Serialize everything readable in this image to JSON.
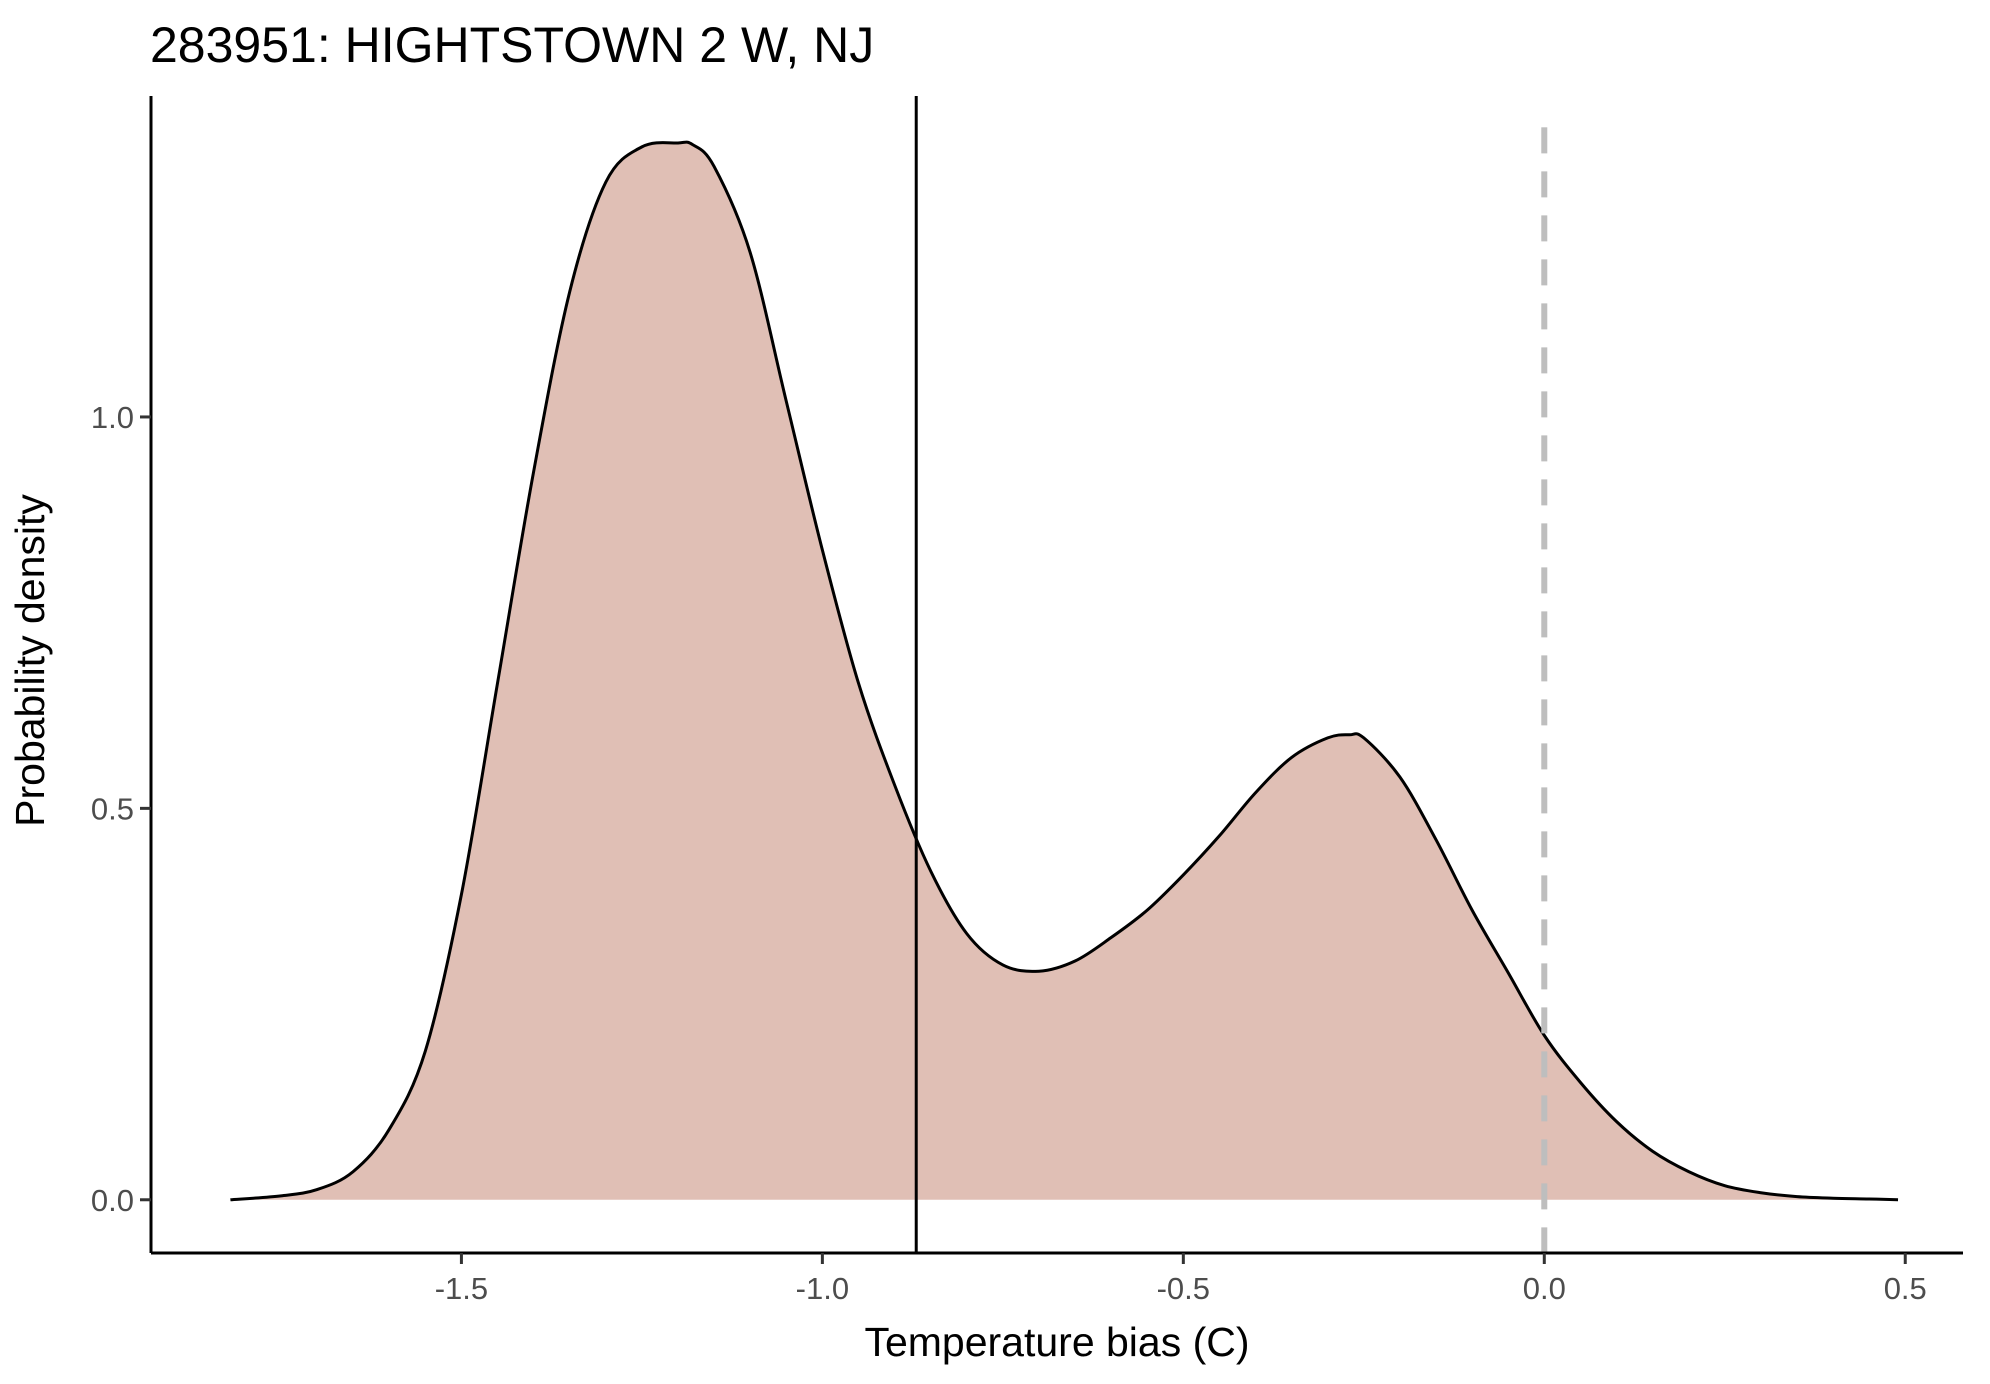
{
  "chart_data": {
    "type": "area",
    "title": "283951: HIGHTSTOWN 2 W, NJ",
    "xlabel": "Temperature bias (C)",
    "ylabel": "Probability density",
    "xlim": [
      -1.93,
      0.58
    ],
    "ylim": [
      -0.068,
      1.41
    ],
    "x_ticks": [
      -1.5,
      -1.0,
      -0.5,
      0.0,
      0.5
    ],
    "x_tick_labels": [
      "-1.5",
      "-1.0",
      "-0.5",
      "0.0",
      "0.5"
    ],
    "y_ticks": [
      0.0,
      0.5,
      1.0
    ],
    "y_tick_labels": [
      "0.0",
      "0.5",
      "1.0"
    ],
    "grid": false,
    "fill_color": "#e0bfb5",
    "line_color": "#000000",
    "series": [
      {
        "x": [
          -1.82,
          -1.75,
          -1.7,
          -1.65,
          -1.6,
          -1.55,
          -1.5,
          -1.45,
          -1.4,
          -1.35,
          -1.3,
          -1.25,
          -1.2,
          -1.18,
          -1.15,
          -1.1,
          -1.05,
          -1.0,
          -0.95,
          -0.9,
          -0.85,
          -0.8,
          -0.75,
          -0.7,
          -0.65,
          -0.6,
          -0.55,
          -0.5,
          -0.45,
          -0.4,
          -0.35,
          -0.3,
          -0.27,
          -0.25,
          -0.2,
          -0.15,
          -0.1,
          -0.05,
          0.0,
          0.05,
          0.1,
          0.15,
          0.2,
          0.25,
          0.3,
          0.35,
          0.4,
          0.45,
          0.49
        ],
        "y": [
          0.0,
          0.005,
          0.013,
          0.036,
          0.09,
          0.19,
          0.39,
          0.66,
          0.93,
          1.16,
          1.3,
          1.345,
          1.35,
          1.348,
          1.32,
          1.21,
          1.02,
          0.83,
          0.66,
          0.53,
          0.42,
          0.34,
          0.3,
          0.292,
          0.305,
          0.335,
          0.37,
          0.415,
          0.465,
          0.52,
          0.565,
          0.59,
          0.594,
          0.59,
          0.54,
          0.46,
          0.37,
          0.29,
          0.21,
          0.15,
          0.1,
          0.062,
          0.036,
          0.018,
          0.009,
          0.004,
          0.002,
          0.001,
          0.0
        ]
      }
    ],
    "reference_lines": [
      {
        "x": -0.87,
        "style": "solid",
        "color": "#000000"
      },
      {
        "x": 0.0,
        "style": "dashed",
        "color": "#bebebe"
      }
    ]
  }
}
